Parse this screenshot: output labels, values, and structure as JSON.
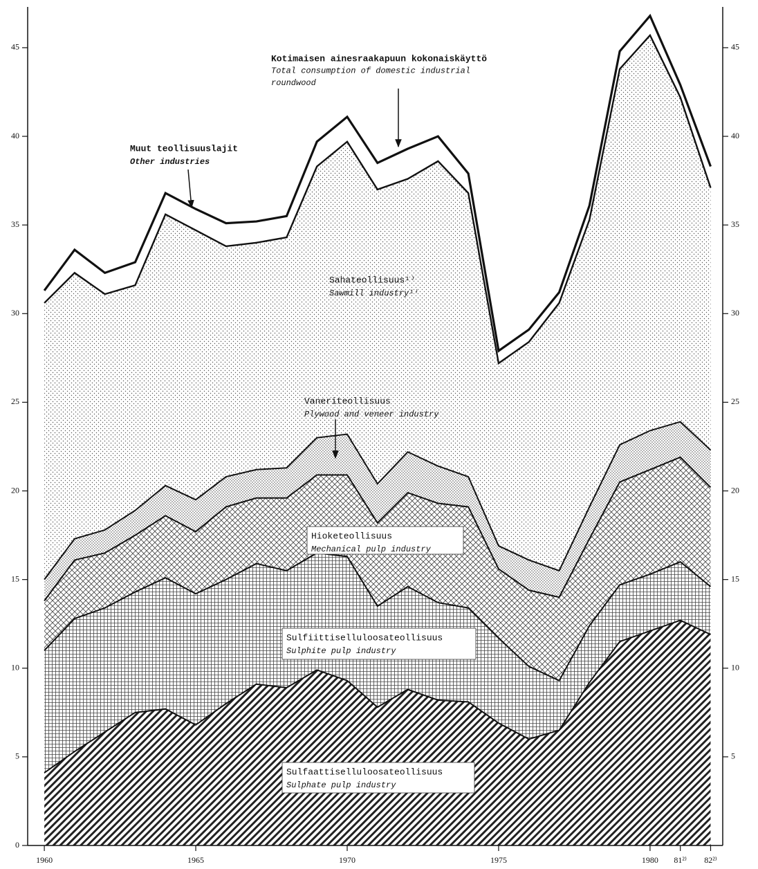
{
  "chart_data": {
    "type": "stacked_area",
    "x": [
      1960,
      1961,
      1962,
      1963,
      1964,
      1965,
      1966,
      1967,
      1968,
      1969,
      1970,
      1971,
      1972,
      1973,
      1974,
      1975,
      1976,
      1977,
      1978,
      1979,
      1980,
      1981,
      1982
    ],
    "xlim": [
      1959.45,
      1982.4
    ],
    "xticks": [
      1960,
      1965,
      1970,
      1975,
      1980,
      {
        "value": 1981,
        "label": "81²⁾"
      },
      {
        "value": 1982,
        "label": "82²⁾"
      }
    ],
    "ylim": [
      0,
      47.3
    ],
    "yticks": [
      0,
      5,
      10,
      15,
      20,
      25,
      30,
      35,
      40,
      45
    ],
    "y2ticks": [
      5,
      10,
      15,
      20,
      25,
      30,
      35,
      40,
      45
    ],
    "series": [
      {
        "name": "Sulfaattiselluloosateollisuus",
        "name_en": "Sulphate pulp industry",
        "fill_style": "diagonal",
        "values": [
          4.1,
          5.3,
          6.4,
          7.5,
          7.7,
          6.8,
          8.0,
          9.1,
          8.9,
          9.9,
          9.3,
          7.8,
          8.8,
          8.2,
          8.1,
          6.9,
          6.0,
          6.5,
          9.2,
          11.5,
          12.1,
          12.7,
          11.9
        ]
      },
      {
        "name": "Sulfiittiselluloosateollisuus",
        "name_en": "Sulphite pulp industry",
        "fill_style": "grid",
        "values": [
          6.9,
          7.5,
          7.0,
          6.8,
          7.4,
          7.4,
          7.0,
          6.8,
          6.6,
          6.6,
          7.0,
          5.7,
          5.8,
          5.5,
          5.3,
          4.8,
          4.1,
          2.8,
          3.2,
          3.2,
          3.2,
          3.3,
          2.7
        ]
      },
      {
        "name": "Hioketeollisuus",
        "name_en": "Mechanical pulp industry",
        "fill_style": "crosshatch",
        "values": [
          2.8,
          3.3,
          3.1,
          3.2,
          3.5,
          3.5,
          4.1,
          3.7,
          4.1,
          4.4,
          4.6,
          4.7,
          5.3,
          5.6,
          5.7,
          3.9,
          4.3,
          4.7,
          4.9,
          5.8,
          5.9,
          5.9,
          5.6
        ]
      },
      {
        "name": "Vaneriteollisuus",
        "name_en": "Plywood and veneer industry",
        "fill_style": "dense-dots",
        "values": [
          1.2,
          1.2,
          1.3,
          1.4,
          1.7,
          1.8,
          1.7,
          1.6,
          1.7,
          2.1,
          2.3,
          2.2,
          2.3,
          2.1,
          1.7,
          1.3,
          1.7,
          1.5,
          1.8,
          2.1,
          2.2,
          2.0,
          2.1
        ]
      },
      {
        "name": "Sahateollisuus¹⁾",
        "name_en": "Sawmill industry¹⁾",
        "fill_style": "dots",
        "values": [
          15.6,
          15.0,
          13.3,
          12.7,
          15.3,
          15.2,
          13.0,
          12.8,
          13.0,
          15.3,
          16.5,
          16.6,
          15.4,
          17.2,
          16.0,
          10.3,
          12.3,
          15.1,
          16.2,
          21.2,
          22.3,
          18.3,
          14.8
        ]
      },
      {
        "name": "Muut teollisuuslajit",
        "name_en": "Other industries",
        "fill_style": "white",
        "values": [
          0.7,
          1.3,
          1.2,
          1.3,
          1.2,
          1.2,
          1.3,
          1.2,
          1.2,
          1.4,
          1.4,
          1.5,
          1.7,
          1.4,
          1.1,
          0.7,
          0.7,
          0.6,
          0.8,
          1.0,
          1.1,
          0.7,
          1.2
        ]
      }
    ],
    "total_label": [
      "Kotimaisen ainesraakapuun kokonaiskäyttö",
      "Total consumption of domestic industrial",
      "roundwood"
    ]
  }
}
